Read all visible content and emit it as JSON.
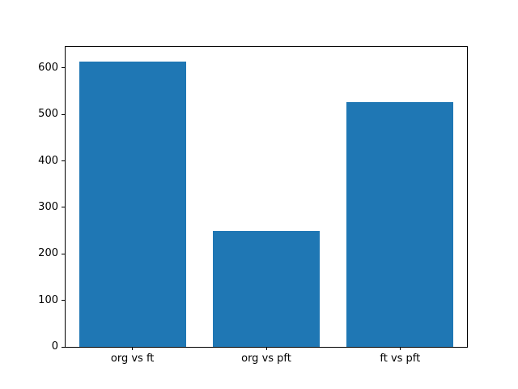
{
  "chart_data": {
    "type": "bar",
    "categories": [
      "org vs ft",
      "org vs pft",
      "ft vs pft"
    ],
    "values": [
      613,
      249,
      527
    ],
    "title": "",
    "xlabel": "",
    "ylabel": "",
    "ylim": [
      0,
      645
    ],
    "yticks": [
      0,
      100,
      200,
      300,
      400,
      500,
      600
    ],
    "bar_color": "#1f77b4",
    "spine_color": "#000000",
    "tick_label_color": "#000000",
    "background_color": "#ffffff",
    "grid": "off",
    "legend": "none",
    "bar_width_fraction": 0.8
  }
}
